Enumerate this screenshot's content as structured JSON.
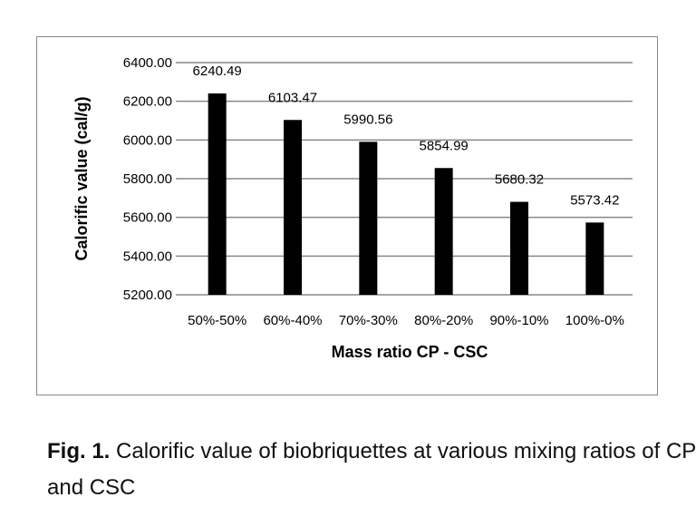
{
  "chart_data": {
    "type": "bar",
    "categories": [
      "50%-50%",
      "60%-40%",
      "70%-30%",
      "80%-20%",
      "90%-10%",
      "100%-0%"
    ],
    "values": [
      6240.49,
      6103.47,
      5990.56,
      5854.99,
      5680.32,
      5573.42
    ],
    "value_labels": [
      "6240.49",
      "6103.47",
      "5990.56",
      "5854.99",
      "5680.32",
      "5573.42"
    ],
    "xlabel": "Mass ratio CP - CSC",
    "ylabel": "Calorific value (cal/g)",
    "ylim": [
      5200,
      6400
    ],
    "yticks": [
      "5200.00",
      "5400.00",
      "5600.00",
      "5800.00",
      "6000.00",
      "6200.00",
      "6400.00"
    ],
    "grid": true,
    "bar_color": "#000000",
    "grid_color": "#888888"
  },
  "caption": {
    "label": "Fig. 1.",
    "text": " Calorific value of biobriquettes at various mixing ratios of CP and CSC"
  }
}
